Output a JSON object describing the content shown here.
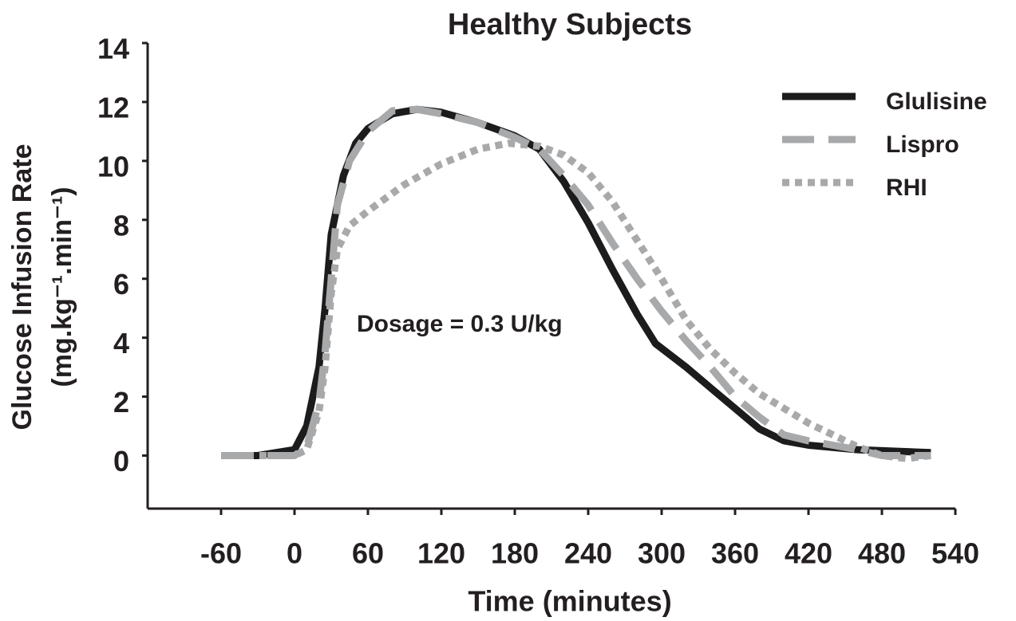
{
  "chart_data": {
    "type": "line",
    "title": "Healthy Subjects",
    "x_label": "Time (minutes)",
    "y_label": [
      "Glucose Infusion Rate",
      "(mg.kg⁻¹.min⁻¹)"
    ],
    "annotation": "Dosage = 0.3 U/kg",
    "xlim": [
      -120,
      540
    ],
    "xticks": [
      -60,
      0,
      60,
      120,
      180,
      240,
      300,
      360,
      420,
      480,
      540
    ],
    "ylim": [
      -1.8,
      14
    ],
    "yticks": [
      0,
      2,
      4,
      6,
      8,
      10,
      12,
      14
    ],
    "legend": "upper right",
    "series": [
      {
        "name": "Glulisine",
        "color": "#1c1c1c",
        "dash": "solid",
        "x": [
          -60,
          -30,
          0,
          10,
          20,
          25,
          30,
          40,
          50,
          60,
          80,
          100,
          120,
          150,
          180,
          200,
          220,
          240,
          260,
          280,
          295,
          320,
          340,
          360,
          380,
          400,
          420,
          460,
          520
        ],
        "values": [
          0,
          0,
          0.2,
          1,
          3,
          5,
          7.5,
          9.5,
          10.6,
          11.1,
          11.6,
          11.75,
          11.65,
          11.3,
          10.85,
          10.4,
          9.3,
          7.9,
          6.3,
          4.8,
          3.8,
          3.0,
          2.3,
          1.6,
          0.9,
          0.5,
          0.35,
          0.2,
          0.1
        ]
      },
      {
        "name": "Lispro",
        "color": "#a8a9ab",
        "dash": "dashed",
        "x": [
          -60,
          0,
          10,
          20,
          25,
          30,
          35,
          45,
          60,
          80,
          100,
          120,
          150,
          180,
          200,
          220,
          240,
          260,
          280,
          300,
          320,
          340,
          360,
          380,
          400,
          420,
          460,
          480,
          520
        ],
        "values": [
          0,
          0,
          0.3,
          1.8,
          3.5,
          6,
          8.5,
          10,
          11.0,
          11.7,
          11.75,
          11.6,
          11.3,
          10.8,
          10.4,
          9.5,
          8.5,
          7.2,
          6.0,
          4.9,
          3.9,
          3.0,
          2.0,
          1.3,
          0.7,
          0.5,
          0.2,
          0.0,
          0
        ]
      },
      {
        "name": "RHI",
        "color": "#a8a9ab",
        "dash": "dotted",
        "x": [
          -60,
          0,
          10,
          20,
          25,
          30,
          35,
          45,
          60,
          90,
          120,
          150,
          175,
          200,
          220,
          240,
          260,
          280,
          300,
          320,
          340,
          360,
          380,
          400,
          420,
          440,
          460,
          480,
          500,
          520
        ],
        "values": [
          0,
          0,
          0.2,
          1.5,
          3,
          5.5,
          7,
          7.8,
          8.3,
          9.2,
          9.9,
          10.4,
          10.6,
          10.5,
          10.2,
          9.6,
          8.6,
          7.3,
          6,
          4.6,
          3.6,
          2.8,
          2.1,
          1.6,
          1.1,
          0.7,
          0.3,
          0.0,
          -0.1,
          0
        ]
      }
    ]
  }
}
